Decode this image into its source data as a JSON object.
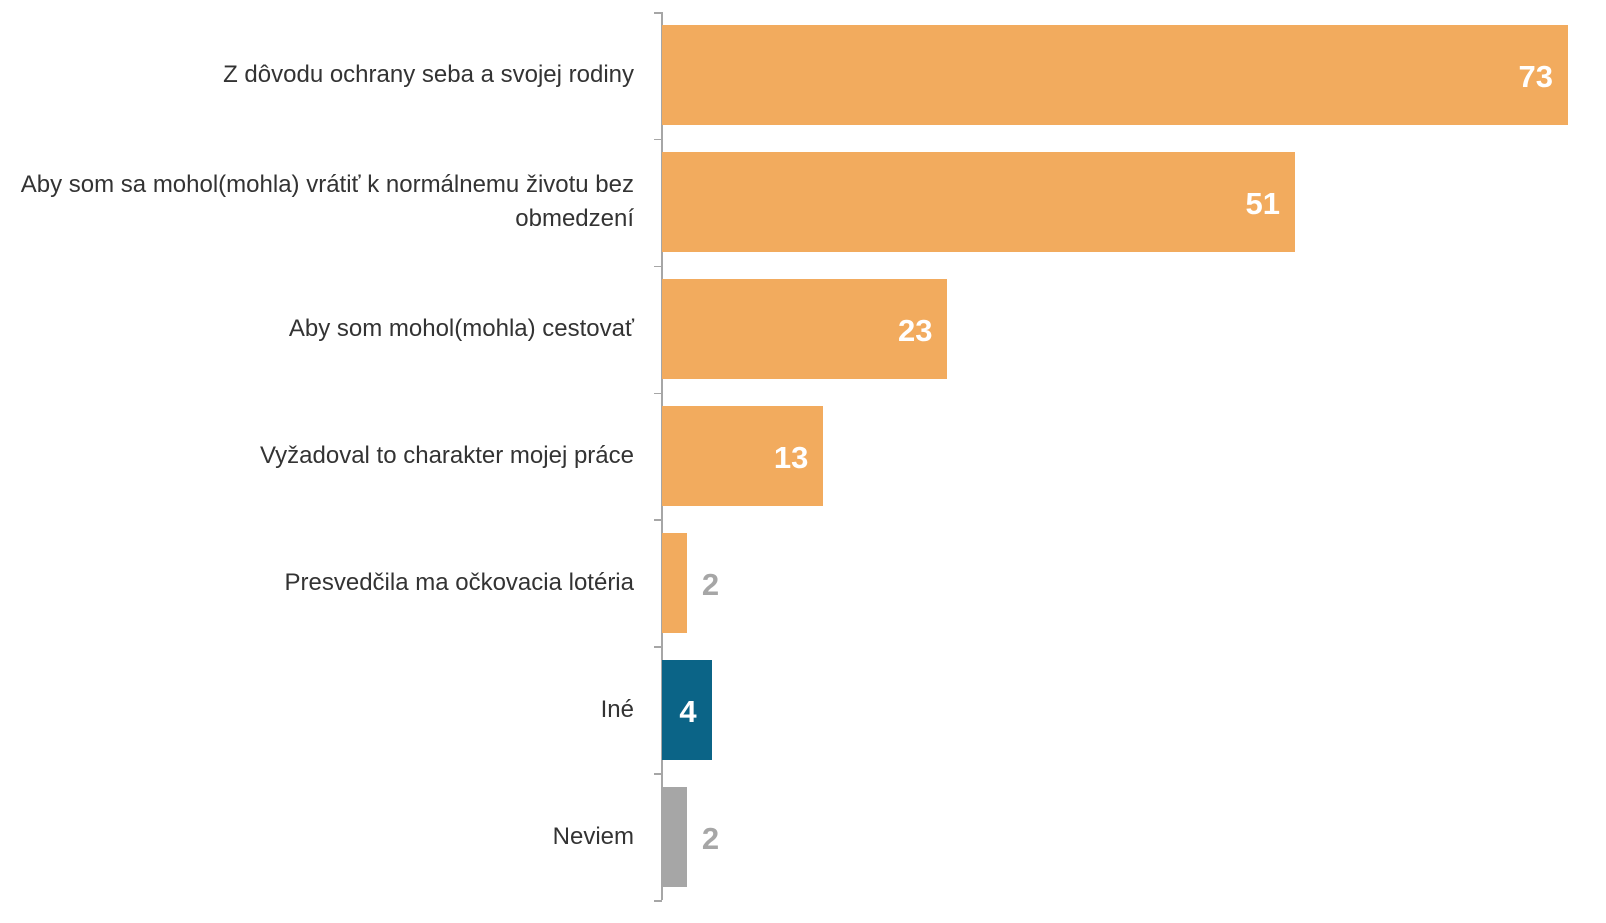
{
  "chart_data": {
    "type": "bar",
    "orientation": "horizontal",
    "categories": [
      "Z dôvodu ochrany seba a svojej rodiny",
      "Aby som sa mohol(mohla) vrátiť k normálnemu životu bez obmedzení",
      "Aby som mohol(mohla) cestovať",
      "Vyžadoval to charakter mojej práce",
      "Presvedčila ma očkovacia lotéria",
      "Iné",
      "Neviem"
    ],
    "values": [
      73,
      51,
      23,
      13,
      2,
      4,
      2
    ],
    "colors": [
      "#f2ab5e",
      "#f2ab5e",
      "#f2ab5e",
      "#f2ab5e",
      "#f2ab5e",
      "#0b6487",
      "#a6a6a6"
    ],
    "xlim": [
      0,
      73
    ]
  }
}
